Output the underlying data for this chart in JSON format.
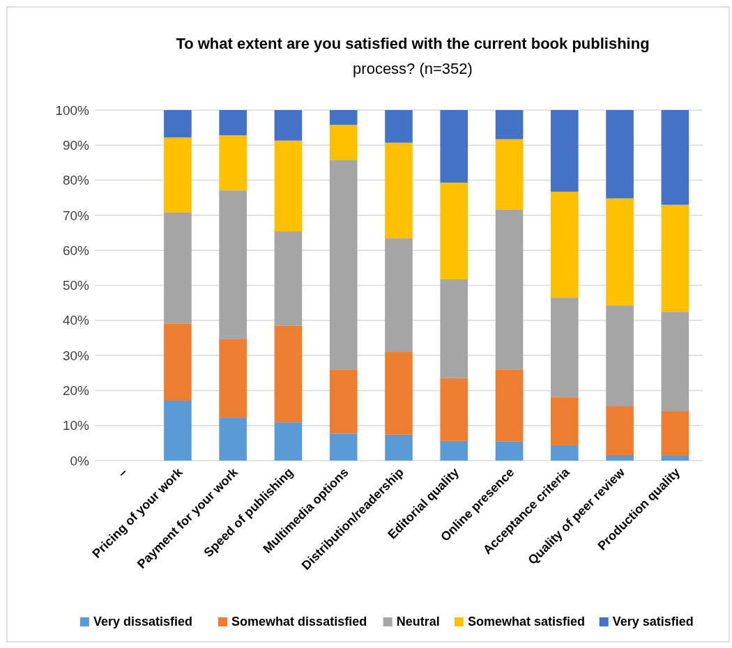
{
  "chart_data": {
    "type": "bar",
    "stacked": true,
    "title": "To what extent are you satisfied with the current book publishing",
    "subtitle": "process? (n=352)",
    "categories": [
      "–",
      "Pricing of your work",
      "Payment for your work",
      "Speed of publishing",
      "Multimedia options",
      "Distribution/readership",
      "Editorial quality",
      "Online presence",
      "Acceptance criteria",
      "Quality of peer review",
      "Production quality"
    ],
    "series": [
      {
        "name": "Very dissatisfied",
        "color": "#5b9bd5",
        "values": [
          null,
          17.1,
          12.3,
          10.9,
          7.6,
          7.4,
          5.6,
          5.4,
          4.4,
          1.6,
          1.4
        ]
      },
      {
        "name": "Somewhat dissatisfied",
        "color": "#ed7d31",
        "values": [
          null,
          21.9,
          22.3,
          27.5,
          18.4,
          23.6,
          17.9,
          20.6,
          13.5,
          13.9,
          12.7
        ]
      },
      {
        "name": "Neutral",
        "color": "#a5a5a5",
        "values": [
          null,
          31.8,
          42.5,
          27.0,
          59.7,
          32.4,
          28.2,
          45.6,
          28.6,
          28.8,
          28.4
        ]
      },
      {
        "name": "Somewhat satisfied",
        "color": "#ffc000",
        "values": [
          null,
          21.4,
          15.7,
          25.9,
          10.1,
          27.3,
          27.6,
          20.1,
          30.2,
          30.5,
          30.5
        ]
      },
      {
        "name": "Very satisfied",
        "color": "#4472c4",
        "values": [
          null,
          7.8,
          7.2,
          8.7,
          4.2,
          9.3,
          20.7,
          8.3,
          23.3,
          25.2,
          27.0
        ]
      }
    ],
    "ylim": [
      0,
      100
    ],
    "yticks": [
      {
        "value": 0,
        "label": "0%"
      },
      {
        "value": 10,
        "label": "10%"
      },
      {
        "value": 20,
        "label": "20%"
      },
      {
        "value": 30,
        "label": "30%"
      },
      {
        "value": 40,
        "label": "40%"
      },
      {
        "value": 50,
        "label": "50%"
      },
      {
        "value": 60,
        "label": "60%"
      },
      {
        "value": 70,
        "label": "70%"
      },
      {
        "value": 80,
        "label": "80%"
      },
      {
        "value": 90,
        "label": "90%"
      },
      {
        "value": 100,
        "label": "100%"
      }
    ],
    "grid": "y",
    "legend": "bottom"
  }
}
